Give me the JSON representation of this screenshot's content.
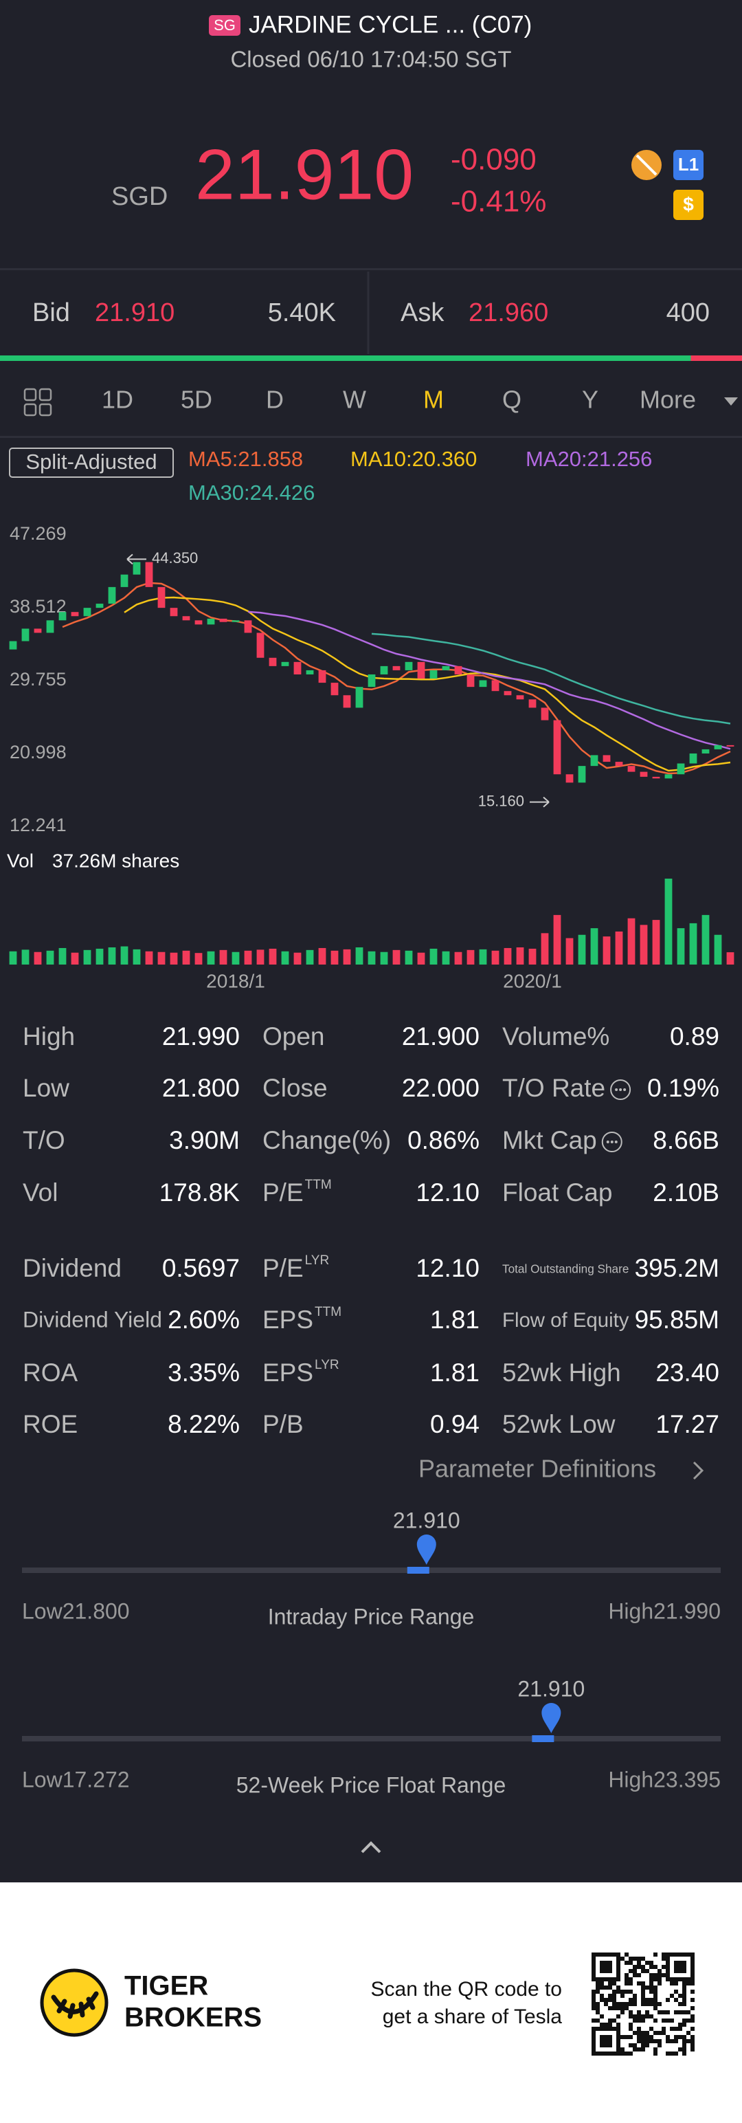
{
  "header": {
    "badge": "SG",
    "title": "JARDINE CYCLE ... (C07)",
    "status": "Closed 06/10 17:04:50 SGT"
  },
  "quote": {
    "currency": "SGD",
    "price": "21.910",
    "change": "-0.090",
    "change_pct": "-0.41%",
    "level_badge": "L1",
    "currency_badge": "$"
  },
  "bid_ask": {
    "bid_label": "Bid",
    "bid": "21.910",
    "bid_size": {
      "value": 5400,
      "label": "5.40K"
    },
    "ask_label": "Ask",
    "ask": "21.960",
    "ask_size": 400
  },
  "tabs": [
    "1D",
    "5D",
    "D",
    "W",
    "M",
    "Q",
    "Y",
    "More"
  ],
  "active_tab": 4,
  "chart_data": {
    "type": "candlestick",
    "adjust_label": "Split-Adjusted",
    "ma": [
      {
        "label": "MA5:21.858",
        "period": 5,
        "color": "#f0663a"
      },
      {
        "label": "MA10:20.360",
        "period": 10,
        "color": "#f5c518"
      },
      {
        "label": "MA20:21.256",
        "period": 20,
        "color": "#b36ae2"
      },
      {
        "label": "MA30:24.426",
        "period": 30,
        "color": "#3fb5a0"
      }
    ],
    "up_color": "#22c36e",
    "down_color": "#f23b5a",
    "ylim": [
      12.241,
      47.269
    ],
    "yticks": [
      47.269,
      38.512,
      29.755,
      20.998,
      12.241
    ],
    "categories": [
      null,
      null,
      null,
      null,
      null,
      null,
      null,
      null,
      null,
      null,
      null,
      null,
      null,
      null,
      null,
      null,
      null,
      null,
      "2018/1",
      null,
      null,
      null,
      null,
      null,
      null,
      null,
      null,
      null,
      null,
      null,
      null,
      null,
      null,
      null,
      null,
      null,
      null,
      null,
      null,
      null,
      null,
      null,
      "2020/1",
      null,
      null,
      null,
      null,
      null,
      null,
      null,
      null,
      null,
      null,
      null,
      null,
      null,
      null,
      null,
      null
    ],
    "open": [
      33.5,
      34.5,
      36,
      35.5,
      37,
      38,
      37.5,
      38.5,
      39,
      41,
      42.5,
      44,
      41,
      38.5,
      37.5,
      37,
      36.5,
      37.2,
      36.8,
      37,
      35.5,
      32.5,
      31.5,
      32,
      30.5,
      31,
      29.5,
      28,
      26.5,
      29,
      30.5,
      31.5,
      31,
      32,
      30,
      31,
      31.5,
      30.5,
      29,
      29.8,
      28.5,
      28,
      27.5,
      26.5,
      25,
      18.5,
      17.5,
      19.5,
      20.8,
      20,
      19.5,
      18.8,
      18.2,
      18,
      18.5,
      19.8,
      21,
      21.5,
      22
    ],
    "close": [
      34.5,
      36,
      35.5,
      37,
      38,
      37.5,
      38.5,
      39,
      41,
      42.5,
      44,
      41,
      38.5,
      37.5,
      37,
      36.5,
      37.2,
      36.8,
      37,
      35.5,
      32.5,
      31.5,
      32,
      30.5,
      31,
      29.5,
      28,
      26.5,
      29,
      30.5,
      31.5,
      31,
      32,
      30,
      31,
      31.5,
      30.5,
      29,
      29.8,
      28.5,
      28,
      27.5,
      26.5,
      25,
      18.5,
      17.5,
      19.5,
      20.8,
      20,
      19.5,
      18.8,
      18.2,
      18,
      18.5,
      19.8,
      21,
      21.5,
      22,
      21.91
    ],
    "annotations": [
      {
        "value": 44.35,
        "label": "44.350",
        "index": 10,
        "side": "high"
      },
      {
        "value": 15.16,
        "label": "15.160",
        "index": 44,
        "side": "low"
      }
    ],
    "volume_title": "Vol",
    "volume_label": "37.26M shares",
    "volumes": [
      40,
      45,
      38,
      42,
      50,
      36,
      44,
      48,
      52,
      55,
      46,
      40,
      38,
      36,
      42,
      35,
      40,
      44,
      38,
      42,
      45,
      48,
      40,
      36,
      44,
      50,
      42,
      46,
      52,
      40,
      38,
      44,
      42,
      36,
      48,
      40,
      38,
      44,
      46,
      42,
      50,
      52,
      48,
      95,
      150,
      80,
      90,
      110,
      85,
      100,
      140,
      120,
      135,
      260,
      110,
      125,
      150,
      90,
      37.26
    ]
  },
  "stats": [
    [
      {
        "label": "High",
        "value": "21.990"
      },
      {
        "label": "Open",
        "value": "21.900"
      },
      {
        "label": "Volume%",
        "value": "0.89"
      }
    ],
    [
      {
        "label": "Low",
        "value": "21.800"
      },
      {
        "label": "Close",
        "value": "22.000"
      },
      {
        "label": "T/O Rate",
        "value": "0.19%",
        "info": true
      }
    ],
    [
      {
        "label": "T/O",
        "value": "3.90M"
      },
      {
        "label": "Change(%)",
        "value": "0.86%"
      },
      {
        "label": "Mkt Cap",
        "value": "8.66B",
        "info": true
      }
    ],
    [
      {
        "label": "Vol",
        "value": "178.8K"
      },
      {
        "label": "P/E",
        "sup": "TTM",
        "value": "12.10"
      },
      {
        "label": "Float Cap",
        "value": "2.10B"
      }
    ],
    [
      {
        "label": "Dividend",
        "value": "0.5697"
      },
      {
        "label": "P/E",
        "sup": "LYR",
        "value": "12.10"
      },
      {
        "label": "Total Outstanding Share",
        "value": "395.2M"
      }
    ],
    [
      {
        "label": "Dividend Yield",
        "value": "2.60%"
      },
      {
        "label": "EPS",
        "sup": "TTM",
        "value": "1.81"
      },
      {
        "label": "Flow of Equity",
        "value": "95.85M"
      }
    ],
    [
      {
        "label": "ROA",
        "value": "3.35%"
      },
      {
        "label": "EPS",
        "sup": "LYR",
        "value": "1.81"
      },
      {
        "label": "52wk High",
        "value": "23.40"
      }
    ],
    [
      {
        "label": "ROE",
        "value": "8.22%"
      },
      {
        "label": "P/B",
        "value": "0.94"
      },
      {
        "label": "52wk Low",
        "value": "17.27"
      }
    ]
  ],
  "parameter_link": "Parameter Definitions",
  "ranges": [
    {
      "title": "Intraday Price Range",
      "low_prefix": "Low",
      "low": {
        "value": 21.8,
        "label": "21.800"
      },
      "high_prefix": "High",
      "high": {
        "value": 21.99,
        "label": "21.990"
      },
      "current": {
        "value": 21.91,
        "label": "21.910"
      }
    },
    {
      "title": "52-Week Price Float Range",
      "low_prefix": "Low",
      "low": {
        "value": 17.272,
        "label": "17.272"
      },
      "high_prefix": "High",
      "high": {
        "value": 23.395,
        "label": "23.395"
      },
      "current": {
        "value": 21.91,
        "label": "21.910"
      }
    }
  ],
  "footer": {
    "brand_line1": "TIGER",
    "brand_line2": "BROKERS",
    "promo_line1": "Scan the QR code to",
    "promo_line2": "get a share of Tesla"
  }
}
